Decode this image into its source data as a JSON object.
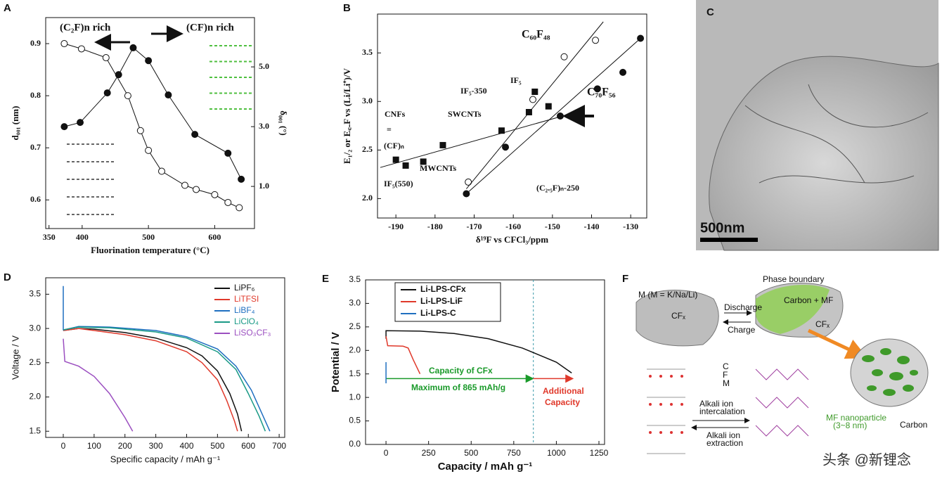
{
  "chart_data": [
    {
      "type": "scatter",
      "panel": "A",
      "annotations": [
        "(C₂F)n rich",
        "(CF)n rich"
      ],
      "xlabel": "Fluorination temperature (°C)",
      "ylabel": "d₀₀₁ (nm)",
      "y2label": "δ₀₀₁ (°)",
      "xlim": [
        345,
        660
      ],
      "xticks": [
        350,
        400,
        500,
        600
      ],
      "ylim": [
        0.545,
        0.95
      ],
      "yticks": [
        0.6,
        0.7,
        0.8,
        0.9
      ],
      "y2lim": [
        -0.41,
        6.65
      ],
      "y2ticks": [
        {
          "value": 1,
          "label": "1.0"
        },
        {
          "value": 3,
          "label": "3.0"
        },
        {
          "value": 5,
          "label": "5.0"
        }
      ],
      "series": [
        {
          "color": "#111111",
          "marker": "open-circle",
          "line": true,
          "x": [
            373,
            399,
            436,
            469,
            488,
            500,
            520,
            555,
            572,
            600,
            620,
            637
          ],
          "values": [
            0.9,
            0.89,
            0.873,
            0.8,
            0.733,
            0.695,
            0.655,
            0.628,
            0.62,
            0.61,
            0.595,
            0.585
          ]
        },
        {
          "color": "#111111",
          "marker": "filled-circle",
          "line": true,
          "axis": "y2",
          "x": [
            373,
            397,
            438,
            455,
            477,
            500,
            530,
            570,
            620,
            640
          ],
          "values": [
            3.0,
            3.14,
            4.13,
            4.74,
            5.64,
            5.21,
            4.06,
            2.74,
            2.11,
            1.24
          ]
        }
      ]
    },
    {
      "type": "scatter",
      "panel": "B",
      "annotations": [
        "C₆₀F₄₈",
        "IF₅",
        "IF₅-350",
        "SWCNTs",
        "CNFs",
        "=",
        "(CF)ₙ",
        "MWCNTs",
        "IF₅(550)",
        "(C₂.₅F)ₙ-250",
        "C₇₀F₅₆"
      ],
      "xlabel": "δ¹⁹F vs CFCl₃/ppm",
      "ylabel": "E₁/₂ or E꜀₋F vs (Li/Li⁺)/V",
      "xlim": [
        -194.7,
        -125.9
      ],
      "xticks": [
        -190,
        -180,
        -170,
        -160,
        -150,
        -140,
        -130
      ],
      "ylim": [
        1.8,
        3.9
      ],
      "yticks": [
        {
          "value": 2,
          "label": "2.0"
        },
        2.5,
        {
          "value": 3,
          "label": "3.0"
        },
        3.5
      ],
      "series": [
        {
          "color": "#111111",
          "marker": "filled-square",
          "x": [
            -190,
            -187.5,
            -183,
            -178,
            -163,
            -156,
            -154.5,
            -151
          ],
          "values": [
            2.4,
            2.34,
            2.38,
            2.55,
            2.7,
            2.89,
            3.1,
            2.95
          ]
        },
        {
          "color": "#111111",
          "marker": "filled-circle",
          "x": [
            -172,
            -162,
            -148,
            -138.5,
            -132,
            -127.5
          ],
          "values": [
            2.05,
            2.53,
            2.85,
            3.13,
            3.3,
            3.65
          ]
        },
        {
          "color": "#111111",
          "marker": "open-circle",
          "x": [
            -171.5,
            -155,
            -147,
            -139
          ],
          "values": [
            2.17,
            3.02,
            3.46,
            3.63
          ]
        },
        {
          "color": "#111111",
          "line": true,
          "x": [
            -194,
            -143
          ],
          "values": [
            2.32,
            2.9
          ]
        },
        {
          "color": "#111111",
          "line": true,
          "x": [
            -172,
            -137
          ],
          "values": [
            2.1,
            3.82
          ]
        },
        {
          "color": "#111111",
          "line": true,
          "x": [
            -172,
            -127.5
          ],
          "values": [
            2.05,
            3.65
          ]
        }
      ]
    },
    {
      "type": "line",
      "panel": "D",
      "xlabel": "Specific capacity / mAh g⁻¹",
      "ylabel": "Voltage / V",
      "xlim": [
        -57,
        718
      ],
      "xticks": [
        0,
        100,
        200,
        300,
        400,
        500,
        600,
        700
      ],
      "ylim": [
        1.41,
        3.74
      ],
      "yticks": [
        {
          "value": 1.5,
          "label": "1.5"
        },
        {
          "value": 2,
          "label": "2.0"
        },
        2.5,
        {
          "value": 3,
          "label": "3.0"
        },
        3.5
      ],
      "legend": "upper right",
      "series": [
        {
          "name": "LiPF₆",
          "color": "#111111",
          "x": [
            0,
            50,
            100,
            200,
            300,
            400,
            450,
            500,
            540,
            565,
            578
          ],
          "values": [
            2.97,
            3.0,
            2.99,
            2.94,
            2.86,
            2.72,
            2.6,
            2.38,
            2.05,
            1.75,
            1.5
          ]
        },
        {
          "name": "LiTFSI",
          "color": "#e0392b",
          "x": [
            0,
            50,
            100,
            200,
            300,
            400,
            450,
            500,
            530,
            555,
            565
          ],
          "values": [
            2.97,
            3.0,
            2.97,
            2.91,
            2.82,
            2.66,
            2.5,
            2.25,
            1.95,
            1.65,
            1.5
          ]
        },
        {
          "name": "LiBF₄",
          "color": "#1f6fc0",
          "x": [
            0,
            0,
            3,
            50,
            150,
            300,
            400,
            500,
            560,
            610,
            645,
            670
          ],
          "values": [
            3.62,
            2.98,
            2.98,
            3.03,
            3.02,
            2.97,
            2.88,
            2.7,
            2.45,
            2.1,
            1.75,
            1.5
          ]
        },
        {
          "name": "LiClO₄",
          "color": "#1a9a86",
          "x": [
            0,
            50,
            150,
            300,
            400,
            500,
            560,
            600,
            635,
            655
          ],
          "values": [
            2.98,
            3.02,
            3.01,
            2.95,
            2.86,
            2.66,
            2.4,
            2.05,
            1.72,
            1.5
          ]
        },
        {
          "name": "LiSO₃CF₃",
          "color": "#9b4fc0",
          "x": [
            0,
            5,
            50,
            100,
            150,
            200,
            225
          ],
          "values": [
            2.85,
            2.52,
            2.45,
            2.3,
            2.05,
            1.7,
            1.5
          ]
        }
      ]
    },
    {
      "type": "line",
      "panel": "E",
      "annotations": [
        "Capacity of CFx",
        "Maximum of 865 mAh/g",
        "Additional",
        "Capacity"
      ],
      "xlabel": "Capacity / mAh g⁻¹",
      "ylabel": "Potential / V",
      "xlim": [
        -120,
        1283
      ],
      "xticks": [
        0,
        250,
        500,
        750,
        1000,
        1250
      ],
      "ylim": [
        0,
        3.5
      ],
      "yticks": [
        {
          "value": 0,
          "label": "0.0"
        },
        0.5,
        {
          "value": 1,
          "label": "1.0"
        },
        1.5,
        {
          "value": 2,
          "label": "2.0"
        },
        2.5,
        {
          "value": 3,
          "label": "3.0"
        },
        3.5
      ],
      "reference_x": 865,
      "legend": "upper left",
      "series": [
        {
          "name": "Li-LPS-CFx",
          "color": "#111111",
          "x": [
            0,
            0,
            200,
            400,
            600,
            800,
            1000,
            1090
          ],
          "values": [
            2.25,
            2.42,
            2.41,
            2.36,
            2.25,
            2.05,
            1.75,
            1.52
          ]
        },
        {
          "name": "Li-LPS-LiF",
          "color": "#e0392b",
          "x": [
            0,
            10,
            100,
            130,
            160,
            200
          ],
          "values": [
            2.3,
            2.1,
            2.09,
            2.05,
            1.8,
            1.5
          ]
        },
        {
          "name": "Li-LPS-C",
          "color": "#1f6fc0",
          "x": [
            0,
            0
          ],
          "values": [
            1.75,
            1.3
          ]
        }
      ]
    }
  ],
  "panel_c": {
    "label": "C",
    "scale_bar": "500nm"
  },
  "panel_f": {
    "label": "F",
    "metal": "M (M = K/Na/Li)",
    "cfx_left": "CFₓ",
    "phase_boundary": "Phase boundary",
    "carbon_mf": "Carbon + MF",
    "cfx_right": "CFₓ",
    "discharge": "Discharge",
    "charge": "Charge",
    "legend": [
      "C",
      "F",
      "M"
    ],
    "intercalation": [
      "Alkali ion",
      "intercalation"
    ],
    "extraction": [
      "Alkali ion",
      "extraction"
    ],
    "nanoparticle": [
      "MF nanoparticle",
      "(3~8 nm)"
    ],
    "carbon": "Carbon"
  },
  "watermark": "头条 @新锂念"
}
